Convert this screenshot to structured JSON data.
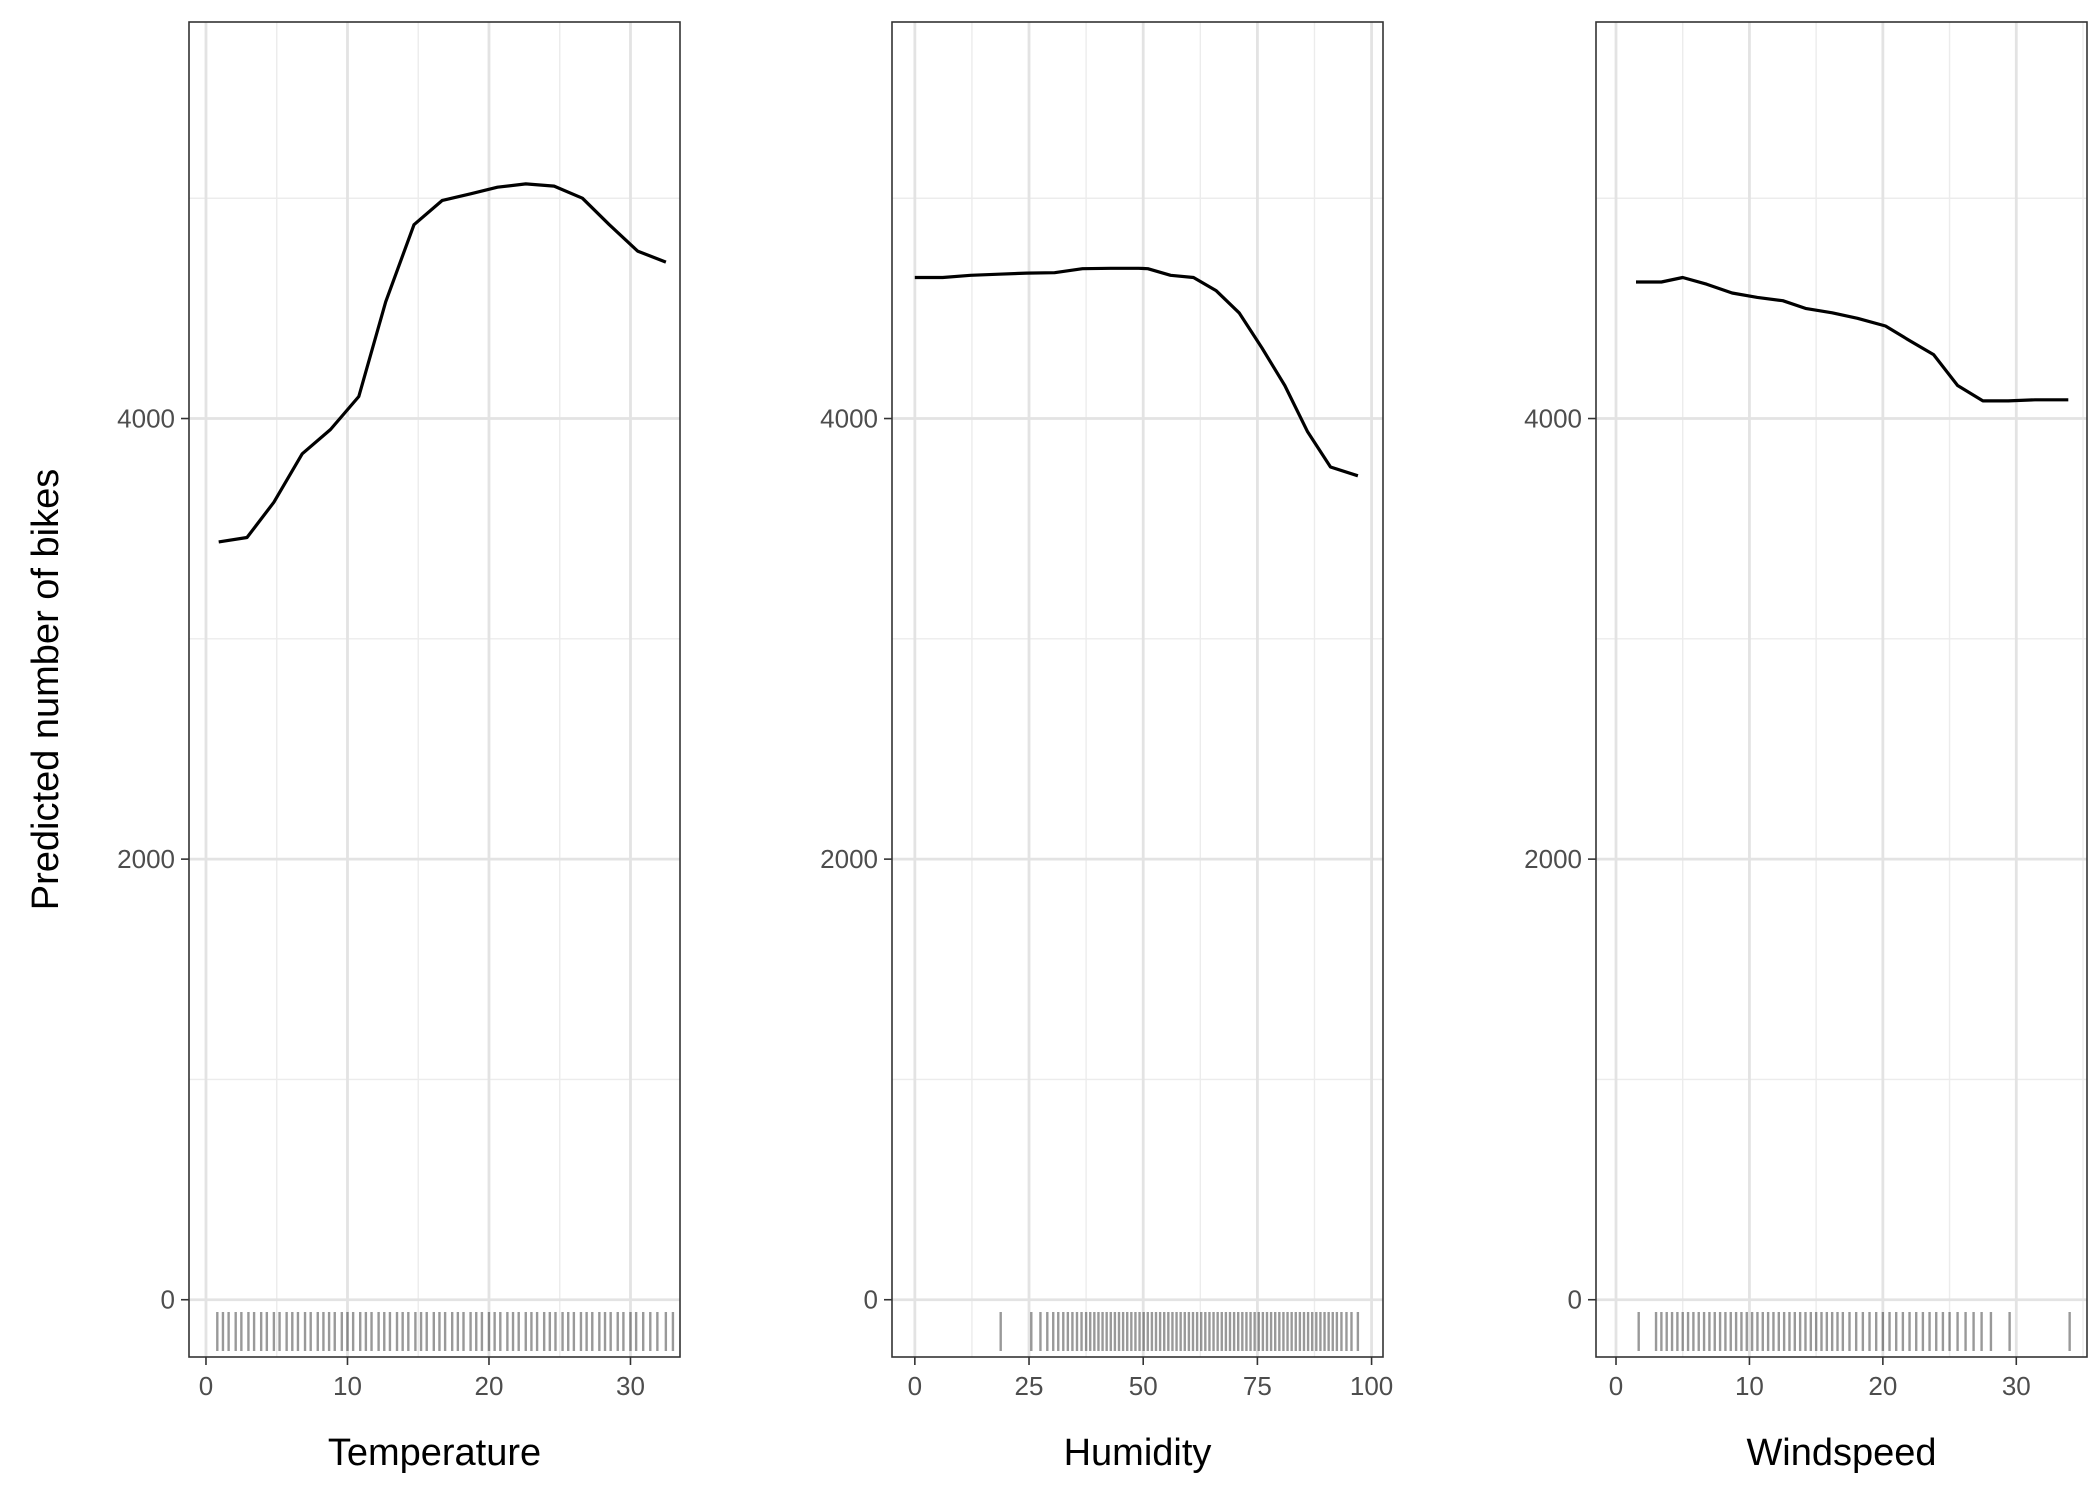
{
  "chart_data": [
    {
      "type": "line",
      "xlabel": "Temperature",
      "ylabel": "Predicted number of bikes",
      "xlim": [
        -1.2,
        33.5
      ],
      "ylim": [
        -260,
        5800
      ],
      "xticks": [
        0,
        10,
        20,
        30
      ],
      "yticks": [
        0,
        2000,
        4000
      ],
      "grid": true,
      "x": [
        0.9,
        2.9,
        4.8,
        6.8,
        8.8,
        10.8,
        12.7,
        14.7,
        16.7,
        18.7,
        20.6,
        22.6,
        24.6,
        26.6,
        28.5,
        30.5,
        32.5
      ],
      "y": [
        3440,
        3460,
        3620,
        3840,
        3950,
        4100,
        4530,
        4880,
        4990,
        5020,
        5050,
        5065,
        5055,
        5000,
        4880,
        4760,
        4710
      ],
      "rug": [
        0.8,
        1.2,
        1.6,
        2.1,
        2.5,
        3.0,
        3.4,
        3.9,
        4.3,
        4.8,
        5.2,
        5.7,
        6.1,
        6.5,
        7.0,
        7.4,
        7.9,
        8.3,
        8.7,
        9.1,
        9.6,
        10.0,
        10.4,
        10.9,
        11.3,
        11.7,
        12.2,
        12.6,
        13.0,
        13.5,
        13.9,
        14.3,
        14.8,
        15.2,
        15.6,
        16.1,
        16.5,
        16.9,
        17.4,
        17.8,
        18.2,
        18.7,
        19.1,
        19.5,
        20.0,
        20.4,
        20.8,
        21.3,
        21.7,
        22.1,
        22.6,
        23.0,
        23.4,
        23.9,
        24.3,
        24.7,
        25.2,
        25.6,
        26.0,
        26.5,
        26.9,
        27.3,
        27.8,
        28.2,
        28.6,
        29.1,
        29.5,
        30.0,
        30.4,
        30.9,
        31.4,
        31.9,
        32.5,
        33.0
      ]
    },
    {
      "type": "line",
      "xlabel": "Humidity",
      "ylabel": "",
      "xlim": [
        -5,
        102.5
      ],
      "ylim": [
        -260,
        5800
      ],
      "xticks": [
        0,
        25,
        50,
        75,
        100
      ],
      "yticks": [
        0,
        2000,
        4000
      ],
      "grid": true,
      "x": [
        0,
        6.1,
        12.2,
        18.4,
        24.5,
        30.6,
        36.7,
        42.8,
        49.0,
        51.0,
        56.0,
        61.0,
        66.0,
        71.0,
        76.0,
        81.0,
        86.0,
        91.0,
        97.0
      ],
      "y": [
        4640,
        4640,
        4650,
        4655,
        4660,
        4662,
        4680,
        4682,
        4682,
        4680,
        4650,
        4640,
        4580,
        4480,
        4320,
        4150,
        3940,
        3780,
        3740
      ],
      "rug": [
        18.8,
        25.5,
        27.5,
        29.0,
        30.3,
        31.4,
        32.5,
        33.5,
        34.5,
        35.5,
        36.5,
        37.5,
        38.4,
        39.3,
        40.2,
        41.1,
        42.0,
        42.9,
        43.8,
        44.7,
        45.6,
        46.5,
        47.4,
        48.3,
        49.2,
        50.1,
        51.0,
        51.9,
        52.8,
        53.7,
        54.6,
        55.5,
        56.4,
        57.3,
        58.2,
        59.1,
        60.0,
        60.9,
        61.8,
        62.7,
        63.6,
        64.5,
        65.4,
        66.3,
        67.2,
        68.1,
        69.0,
        69.9,
        70.8,
        71.7,
        72.6,
        73.5,
        74.4,
        75.3,
        76.2,
        77.1,
        78.0,
        78.9,
        79.8,
        80.7,
        81.6,
        82.5,
        83.4,
        84.3,
        85.2,
        86.1,
        87.0,
        87.9,
        88.8,
        89.7,
        90.6,
        91.5,
        92.4,
        93.4,
        94.5,
        95.6,
        97.0
      ]
    },
    {
      "type": "line",
      "xlabel": "Windspeed",
      "ylabel": "",
      "xlim": [
        -1.5,
        35.3
      ],
      "ylim": [
        -260,
        5800
      ],
      "xticks": [
        0,
        10,
        20,
        30
      ],
      "yticks": [
        0,
        2000,
        4000
      ],
      "grid": true,
      "x": [
        1.5,
        3.4,
        5.0,
        6.8,
        8.7,
        10.6,
        12.5,
        14.2,
        16.2,
        18.1,
        20.2,
        22.1,
        23.8,
        25.6,
        27.5,
        29.4,
        31.4,
        33.9
      ],
      "y": [
        4620,
        4620,
        4640,
        4610,
        4570,
        4550,
        4535,
        4500,
        4480,
        4455,
        4420,
        4350,
        4290,
        4150,
        4080,
        4080,
        4085,
        4085
      ],
      "rug": [
        1.7,
        3.0,
        3.4,
        3.8,
        4.2,
        4.6,
        5.0,
        5.4,
        5.8,
        6.2,
        6.6,
        7.0,
        7.4,
        7.8,
        8.2,
        8.6,
        9.0,
        9.4,
        9.8,
        10.2,
        10.6,
        11.0,
        11.4,
        11.8,
        12.2,
        12.6,
        13.0,
        13.4,
        13.8,
        14.2,
        14.6,
        15.0,
        15.4,
        15.8,
        16.2,
        16.6,
        17.0,
        17.5,
        18.0,
        18.5,
        19.0,
        19.5,
        20.0,
        20.5,
        21.0,
        21.5,
        22.0,
        22.5,
        23.0,
        23.5,
        24.0,
        24.5,
        25.0,
        25.6,
        26.2,
        26.8,
        27.4,
        28.1,
        29.5,
        34.0
      ]
    }
  ]
}
